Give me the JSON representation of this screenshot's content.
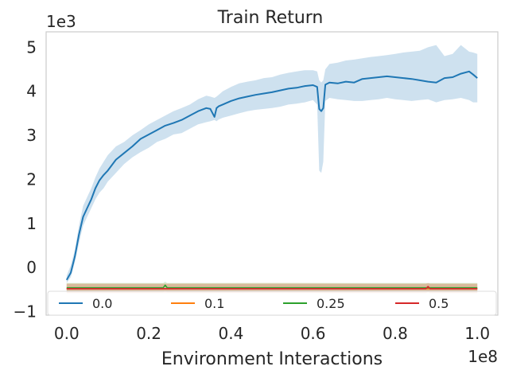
{
  "chart_data": {
    "type": "line",
    "title": "Train Return",
    "xlabel": "Environment Interactions",
    "ylabel": "",
    "x_multiplier_label": "1e8",
    "y_multiplier_label": "1e3",
    "xlim": [
      -0.05,
      1.05
    ],
    "ylim": [
      -1.08,
      5.35
    ],
    "x_ticks": [
      0.0,
      0.2,
      0.4,
      0.6,
      0.8,
      1.0
    ],
    "x_tick_labels": [
      "0.0",
      "0.2",
      "0.4",
      "0.6",
      "0.8",
      "1.0"
    ],
    "y_ticks": [
      -1,
      0,
      1,
      2,
      3,
      4,
      5
    ],
    "y_tick_labels": [
      "−1",
      "0",
      "1",
      "2",
      "3",
      "4",
      "5"
    ],
    "grid": false,
    "legend_position": "bottom",
    "series": [
      {
        "name": "0.0",
        "color": "#1f77b4",
        "x": [
          0.0,
          0.01,
          0.02,
          0.03,
          0.04,
          0.05,
          0.06,
          0.07,
          0.08,
          0.09,
          0.1,
          0.12,
          0.14,
          0.16,
          0.18,
          0.2,
          0.22,
          0.24,
          0.26,
          0.28,
          0.3,
          0.32,
          0.34,
          0.35,
          0.36,
          0.365,
          0.37,
          0.38,
          0.4,
          0.42,
          0.44,
          0.46,
          0.48,
          0.5,
          0.52,
          0.54,
          0.56,
          0.58,
          0.6,
          0.61,
          0.615,
          0.62,
          0.625,
          0.63,
          0.64,
          0.66,
          0.68,
          0.7,
          0.72,
          0.74,
          0.76,
          0.78,
          0.8,
          0.82,
          0.84,
          0.86,
          0.88,
          0.9,
          0.92,
          0.94,
          0.96,
          0.98,
          0.99,
          1.0
        ],
        "y": [
          -0.28,
          -0.12,
          0.25,
          0.75,
          1.15,
          1.35,
          1.55,
          1.8,
          1.98,
          2.1,
          2.2,
          2.45,
          2.6,
          2.75,
          2.92,
          3.02,
          3.12,
          3.22,
          3.28,
          3.35,
          3.45,
          3.55,
          3.62,
          3.6,
          3.42,
          3.62,
          3.66,
          3.7,
          3.78,
          3.84,
          3.88,
          3.92,
          3.95,
          3.98,
          4.02,
          4.06,
          4.08,
          4.12,
          4.14,
          4.1,
          3.6,
          3.55,
          3.62,
          4.15,
          4.2,
          4.18,
          4.22,
          4.2,
          4.28,
          4.3,
          4.32,
          4.34,
          4.32,
          4.3,
          4.28,
          4.25,
          4.22,
          4.2,
          4.3,
          4.32,
          4.4,
          4.45,
          4.38,
          4.3
        ],
        "lower": [
          -0.35,
          -0.22,
          0.12,
          0.55,
          0.95,
          1.15,
          1.35,
          1.55,
          1.7,
          1.8,
          1.95,
          2.15,
          2.35,
          2.5,
          2.62,
          2.72,
          2.85,
          2.92,
          3.02,
          3.05,
          3.15,
          3.25,
          3.3,
          3.32,
          3.35,
          3.32,
          3.36,
          3.4,
          3.45,
          3.5,
          3.55,
          3.58,
          3.6,
          3.62,
          3.65,
          3.7,
          3.72,
          3.75,
          3.8,
          3.7,
          2.2,
          2.15,
          2.4,
          3.78,
          3.85,
          3.82,
          3.8,
          3.78,
          3.78,
          3.8,
          3.82,
          3.85,
          3.82,
          3.8,
          3.78,
          3.8,
          3.82,
          3.75,
          3.8,
          3.82,
          3.85,
          3.8,
          3.75,
          3.75
        ],
        "upper": [
          -0.18,
          0.05,
          0.4,
          0.95,
          1.4,
          1.6,
          1.8,
          2.05,
          2.25,
          2.4,
          2.55,
          2.75,
          2.85,
          3.0,
          3.12,
          3.25,
          3.35,
          3.45,
          3.55,
          3.62,
          3.7,
          3.82,
          3.9,
          3.88,
          3.85,
          3.88,
          3.92,
          4.0,
          4.1,
          4.18,
          4.22,
          4.25,
          4.3,
          4.32,
          4.38,
          4.42,
          4.45,
          4.48,
          4.48,
          4.45,
          4.25,
          4.2,
          4.25,
          4.5,
          4.62,
          4.65,
          4.7,
          4.72,
          4.75,
          4.78,
          4.8,
          4.82,
          4.85,
          4.88,
          4.9,
          4.92,
          5.0,
          5.05,
          4.8,
          4.85,
          5.05,
          4.9,
          4.88,
          4.85
        ]
      },
      {
        "name": "0.1",
        "color": "#ff7f0e",
        "x": [
          0.0,
          0.25,
          0.5,
          0.75,
          1.0
        ],
        "y": [
          -0.48,
          -0.48,
          -0.47,
          -0.48,
          -0.48
        ],
        "lower": [
          -0.58,
          -0.58,
          -0.57,
          -0.58,
          -0.58
        ],
        "upper": [
          -0.36,
          -0.36,
          -0.35,
          -0.36,
          -0.36
        ]
      },
      {
        "name": "0.25",
        "color": "#2ca02c",
        "x": [
          0.0,
          0.235,
          0.24,
          0.245,
          0.5,
          0.75,
          1.0
        ],
        "y": [
          -0.46,
          -0.46,
          -0.4,
          -0.46,
          -0.46,
          -0.46,
          -0.46
        ],
        "lower": [
          -0.56,
          -0.56,
          -0.52,
          -0.56,
          -0.56,
          -0.56,
          -0.56
        ],
        "upper": [
          -0.35,
          -0.35,
          -0.32,
          -0.35,
          -0.35,
          -0.35,
          -0.35
        ]
      },
      {
        "name": "0.5",
        "color": "#d62728",
        "x": [
          0.0,
          0.25,
          0.5,
          0.75,
          0.875,
          0.88,
          0.885,
          1.0
        ],
        "y": [
          -0.48,
          -0.48,
          -0.48,
          -0.48,
          -0.48,
          -0.43,
          -0.48,
          -0.48
        ],
        "lower": [
          -0.58,
          -0.58,
          -0.58,
          -0.58,
          -0.58,
          -0.55,
          -0.58,
          -0.58
        ],
        "upper": [
          -0.37,
          -0.37,
          -0.37,
          -0.37,
          -0.37,
          -0.35,
          -0.37,
          -0.37
        ]
      }
    ]
  }
}
